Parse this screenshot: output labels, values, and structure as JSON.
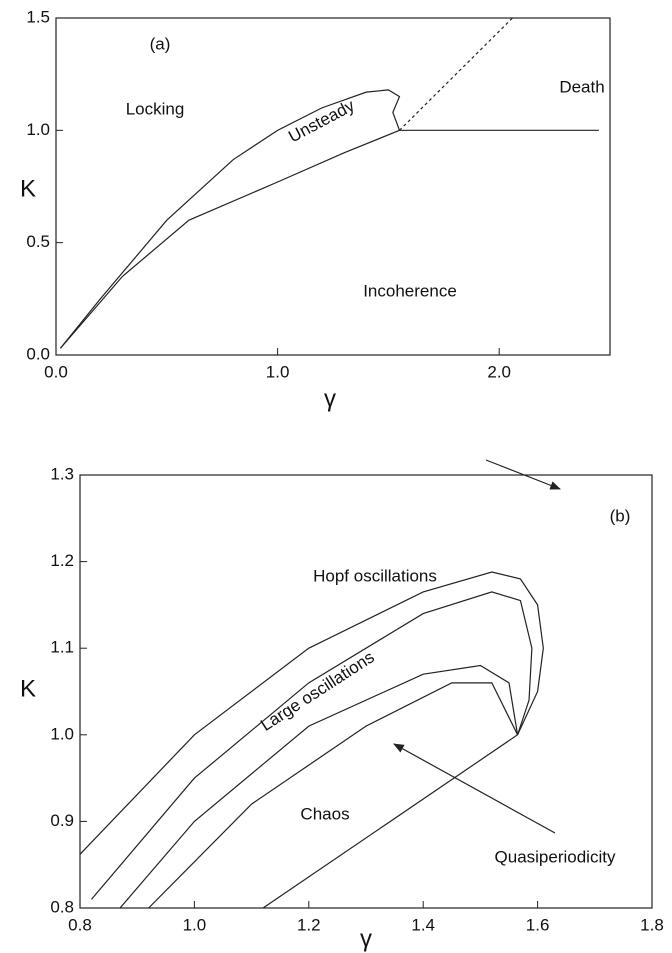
{
  "chart_data": [
    {
      "type": "line",
      "xlabel": "γ",
      "ylabel": "K",
      "color": "#222",
      "xlim": [
        0,
        2.5
      ],
      "ylim": [
        0,
        1.5
      ],
      "xticks": [
        {
          "value": 0,
          "label": "0.0"
        },
        {
          "value": 1,
          "label": "1.0"
        },
        {
          "value": 2,
          "label": "2.0"
        }
      ],
      "yticks": [
        {
          "value": 0,
          "label": "0.0"
        },
        {
          "value": 0.5,
          "label": "0.5"
        },
        {
          "value": 1,
          "label": "1.0"
        },
        {
          "value": 1.5,
          "label": "1.5"
        }
      ],
      "annotations": [
        "(a)",
        "Locking",
        "Death",
        "Unsteady",
        "Incoherence"
      ],
      "series": [
        {
          "x": [
            0.02,
            0.2,
            0.5,
            0.8,
            1.0,
            1.2,
            1.4,
            1.5,
            1.55,
            1.52,
            1.55
          ],
          "values": [
            0.03,
            0.25,
            0.6,
            0.87,
            1.0,
            1.1,
            1.17,
            1.18,
            1.15,
            1.08,
            1.0
          ]
        },
        {
          "x": [
            0.02,
            0.3,
            0.6,
            1.0,
            1.3,
            1.55
          ],
          "values": [
            0.03,
            0.35,
            0.6,
            0.77,
            0.9,
            1.0
          ]
        },
        {
          "x": [
            1.55,
            2.06
          ],
          "values": [
            1.0,
            1.5
          ]
        },
        {
          "x": [
            1.55,
            2.45
          ],
          "values": [
            1.0,
            1.0
          ]
        }
      ]
    },
    {
      "type": "line",
      "xlabel": "γ",
      "ylabel": "K",
      "color": "#222",
      "xlim": [
        0.8,
        1.8
      ],
      "ylim": [
        0.8,
        1.3
      ],
      "xticks": [
        0.8,
        {
          "value": 1,
          "label": "1.0"
        },
        1.2,
        1.4,
        1.6,
        1.8
      ],
      "yticks": [
        0.8,
        0.9,
        {
          "value": 1,
          "label": "1.0"
        },
        1.1,
        1.2,
        1.3
      ],
      "annotations": [
        "(b)",
        "Hopf oscillations",
        "Large oscillations",
        "Chaos",
        "Quasiperiodicity"
      ],
      "series": [
        {
          "x": [
            0.8,
            1.0,
            1.2,
            1.4,
            1.52,
            1.57,
            1.6,
            1.61,
            1.6,
            1.565
          ],
          "values": [
            0.862,
            1.0,
            1.1,
            1.165,
            1.188,
            1.18,
            1.15,
            1.1,
            1.05,
            1.0
          ]
        },
        {
          "x": [
            0.82,
            1.0,
            1.2,
            1.4,
            1.52,
            1.57,
            1.59,
            1.585,
            1.565
          ],
          "values": [
            0.81,
            0.95,
            1.06,
            1.14,
            1.165,
            1.155,
            1.1,
            1.04,
            1.0
          ]
        },
        {
          "x": [
            0.87,
            1.0,
            1.2,
            1.4,
            1.5,
            1.55,
            1.565
          ],
          "values": [
            0.8,
            0.9,
            1.01,
            1.07,
            1.08,
            1.06,
            1.0
          ]
        },
        {
          "x": [
            0.92,
            1.1,
            1.3,
            1.45,
            1.52,
            1.565
          ],
          "values": [
            0.8,
            0.92,
            1.01,
            1.06,
            1.06,
            1.0
          ]
        },
        {
          "x": [
            1.12,
            1.565
          ],
          "values": [
            0.8,
            1.0
          ]
        }
      ]
    }
  ]
}
